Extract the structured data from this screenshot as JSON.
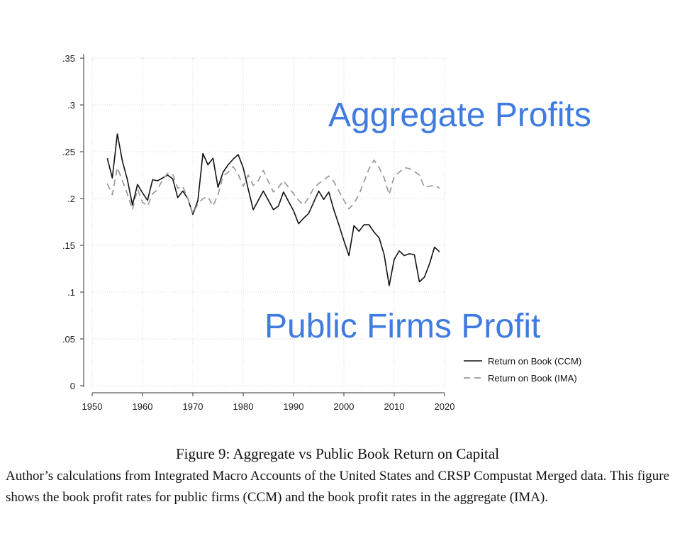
{
  "chart_data": {
    "type": "line",
    "title": "",
    "xlabel": "",
    "ylabel": "",
    "xlim": [
      1950,
      2020
    ],
    "ylim": [
      0,
      0.35
    ],
    "x_ticks": [
      1950,
      1960,
      1970,
      1980,
      1990,
      2000,
      2010,
      2020
    ],
    "x_tick_labels": [
      "1950",
      "1960",
      "1970",
      "1980",
      "1990",
      "2000",
      "2010",
      "2020"
    ],
    "y_ticks": [
      0,
      0.05,
      0.1,
      0.15,
      0.2,
      0.25,
      0.3,
      0.35
    ],
    "y_tick_labels": [
      "0",
      ".05",
      ".1",
      ".15",
      ".2",
      ".25",
      ".3",
      ".35"
    ],
    "grid": true,
    "legend_position": "bottom-right",
    "series": [
      {
        "name": "Return on Book (CCM)",
        "color": "#111111",
        "style": "solid",
        "x": [
          1953,
          1954,
          1955,
          1956,
          1957,
          1958,
          1959,
          1960,
          1961,
          1962,
          1963,
          1964,
          1965,
          1966,
          1967,
          1968,
          1969,
          1970,
          1971,
          1972,
          1973,
          1974,
          1975,
          1976,
          1977,
          1978,
          1979,
          1980,
          1981,
          1982,
          1983,
          1984,
          1985,
          1986,
          1987,
          1988,
          1989,
          1990,
          1991,
          1992,
          1993,
          1994,
          1995,
          1996,
          1997,
          1998,
          1999,
          2000,
          2001,
          2002,
          2003,
          2004,
          2005,
          2006,
          2007,
          2008,
          2009,
          2010,
          2011,
          2012,
          2013,
          2014,
          2015,
          2016,
          2017,
          2018,
          2019
        ],
        "y": [
          0.243,
          0.222,
          0.269,
          0.24,
          0.22,
          0.193,
          0.215,
          0.206,
          0.198,
          0.22,
          0.219,
          0.222,
          0.225,
          0.221,
          0.201,
          0.208,
          0.2,
          0.183,
          0.198,
          0.248,
          0.236,
          0.243,
          0.212,
          0.228,
          0.236,
          0.242,
          0.247,
          0.233,
          0.21,
          0.188,
          0.198,
          0.208,
          0.198,
          0.188,
          0.192,
          0.207,
          0.197,
          0.187,
          0.173,
          0.179,
          0.184,
          0.196,
          0.208,
          0.199,
          0.207,
          0.188,
          0.172,
          0.155,
          0.139,
          0.171,
          0.165,
          0.172,
          0.172,
          0.164,
          0.158,
          0.14,
          0.107,
          0.135,
          0.144,
          0.139,
          0.141,
          0.14,
          0.111,
          0.116,
          0.13,
          0.148,
          0.143
        ]
      },
      {
        "name": "Return on Book (IMA)",
        "color": "#999999",
        "style": "dashed",
        "x": [
          1953,
          1954,
          1955,
          1956,
          1957,
          1958,
          1959,
          1960,
          1961,
          1962,
          1963,
          1964,
          1965,
          1966,
          1967,
          1968,
          1969,
          1970,
          1971,
          1972,
          1973,
          1974,
          1975,
          1976,
          1977,
          1978,
          1979,
          1980,
          1981,
          1982,
          1983,
          1984,
          1985,
          1986,
          1987,
          1988,
          1989,
          1990,
          1991,
          1992,
          1993,
          1994,
          1995,
          1996,
          1997,
          1998,
          1999,
          2000,
          2001,
          2002,
          2003,
          2004,
          2005,
          2006,
          2007,
          2008,
          2009,
          2010,
          2011,
          2012,
          2013,
          2014,
          2015,
          2016,
          2017,
          2018,
          2019
        ],
        "y": [
          0.216,
          0.204,
          0.233,
          0.219,
          0.205,
          0.188,
          0.21,
          0.196,
          0.192,
          0.205,
          0.21,
          0.22,
          0.227,
          0.226,
          0.211,
          0.213,
          0.2,
          0.184,
          0.194,
          0.2,
          0.202,
          0.192,
          0.204,
          0.224,
          0.228,
          0.234,
          0.226,
          0.213,
          0.225,
          0.214,
          0.219,
          0.23,
          0.218,
          0.207,
          0.212,
          0.219,
          0.212,
          0.205,
          0.198,
          0.193,
          0.201,
          0.211,
          0.216,
          0.22,
          0.224,
          0.218,
          0.208,
          0.198,
          0.189,
          0.195,
          0.204,
          0.218,
          0.232,
          0.241,
          0.233,
          0.222,
          0.204,
          0.224,
          0.228,
          0.233,
          0.232,
          0.229,
          0.225,
          0.212,
          0.213,
          0.214,
          0.211
        ]
      }
    ]
  },
  "annotations": {
    "aggregate": "Aggregate Profits",
    "public": "Public Firms Profit",
    "color": "#3f7be0"
  },
  "caption": {
    "title": "Figure 9: Aggregate vs Public Book Return on Capital",
    "note": "Author’s calculations from Integrated Macro Accounts of the United States and CRSP Compustat Merged data. This figure shows the book profit rates for public firms (CCM) and the book profit rates in the aggregate (IMA)."
  }
}
